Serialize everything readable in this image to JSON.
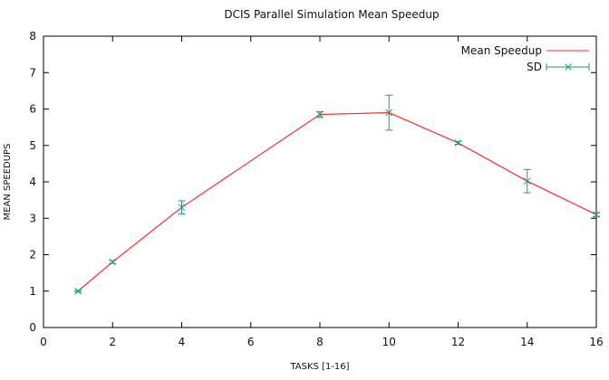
{
  "chart_data": {
    "type": "line",
    "title": "DCIS Parallel Simulation Mean Speedup",
    "xlabel": "TASKS [1-16]",
    "ylabel": "MEAN SPEEDUPS",
    "xlim": [
      0,
      16
    ],
    "ylim": [
      0,
      8
    ],
    "xticks": [
      0,
      2,
      4,
      6,
      8,
      10,
      12,
      14,
      16
    ],
    "yticks": [
      0,
      1,
      2,
      3,
      4,
      5,
      6,
      7,
      8
    ],
    "grid": false,
    "legend_position": "top-right",
    "series": [
      {
        "name": "Mean Speedup",
        "kind": "line",
        "color": "#ff2a2a",
        "x": [
          1,
          2,
          4,
          8,
          10,
          12,
          14,
          16
        ],
        "y": [
          1.0,
          1.8,
          3.3,
          5.85,
          5.9,
          5.07,
          4.02,
          3.1
        ]
      },
      {
        "name": "SD",
        "kind": "errorbars",
        "color": "#1a9e7a",
        "x": [
          1,
          2,
          4,
          8,
          10,
          12,
          14,
          16
        ],
        "y": [
          1.0,
          1.8,
          3.3,
          5.85,
          5.9,
          5.07,
          4.02,
          3.1
        ],
        "error": [
          0.02,
          0.04,
          0.18,
          0.08,
          0.48,
          0.04,
          0.32,
          0.05
        ]
      }
    ]
  }
}
